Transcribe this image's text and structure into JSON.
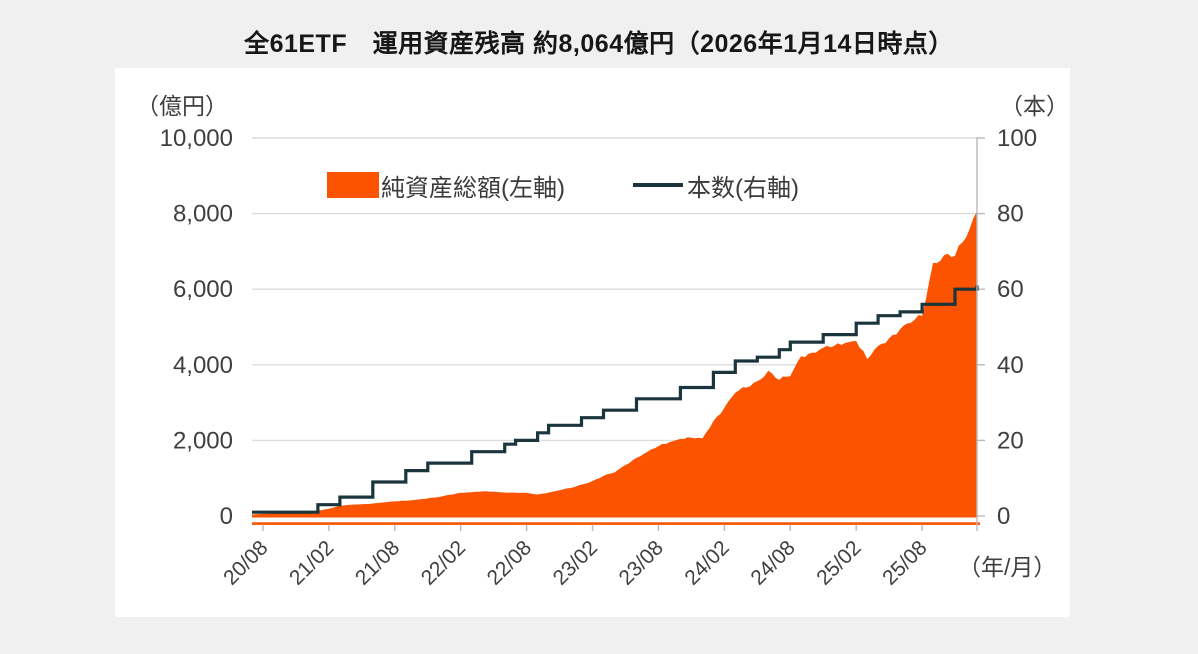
{
  "page": {
    "background": "#f0f0f0",
    "panel_background": "#ffffff"
  },
  "title": "全61ETF　運用資産残高 約8,064億円（2026年1月14日時点）",
  "legend": {
    "area_label": "純資産総額(左軸)",
    "line_label": "本数(右軸)"
  },
  "colors": {
    "area": "#fb5300",
    "line": "#1b353c",
    "grid": "#dcdcdc",
    "axis_gray": "#b9b9b9",
    "tick_text": "#3f3f3f"
  },
  "chart_data": {
    "type": "area",
    "subtype": "area with step-line combo, dual axis",
    "title": "全61ETF　運用資産残高 約8,064億円（2026年1月14日時点）",
    "x_start": "2020/07",
    "x_end": "2026/01",
    "x_unit_label": "（年/月）",
    "x_tick_labels": [
      "20/08",
      "21/02",
      "21/08",
      "22/02",
      "22/08",
      "23/02",
      "23/08",
      "24/02",
      "24/08",
      "25/02",
      "25/08"
    ],
    "x_tick_month_index": [
      1,
      7,
      13,
      19,
      25,
      31,
      37,
      43,
      49,
      55,
      61
    ],
    "left_axis": {
      "unit": "（億円）",
      "min": 0,
      "max": 10000,
      "ticks": [
        0,
        2000,
        4000,
        6000,
        8000,
        10000
      ]
    },
    "right_axis": {
      "unit": "（本）",
      "min": 0,
      "max": 100,
      "ticks": [
        0,
        20,
        40,
        60,
        80,
        100
      ]
    },
    "grid": true,
    "legend_position": "top-center-inside",
    "series": [
      {
        "name": "純資産総額(左軸)",
        "axis": "left",
        "type": "area",
        "color": "#fb5300",
        "values": [
          40,
          60,
          70,
          80,
          90,
          110,
          140,
          190,
          270,
          300,
          310,
          330,
          360,
          385,
          405,
          435,
          465,
          500,
          560,
          615,
          630,
          650,
          640,
          620,
          615,
          610,
          570,
          620,
          680,
          740,
          830,
          925,
          1060,
          1150,
          1350,
          1540,
          1700,
          1850,
          1950,
          2040,
          2070,
          2050,
          2510,
          2860,
          3260,
          3400,
          3570,
          3840,
          3600,
          3700,
          4230,
          4320,
          4450,
          4500,
          4580,
          4630,
          4150,
          4500,
          4700,
          4940,
          5110,
          5300,
          6700,
          6900,
          6880,
          7360,
          8064
        ]
      },
      {
        "name": "本数(右軸)",
        "axis": "right",
        "type": "step-line",
        "color": "#1b353c",
        "values": [
          1,
          1,
          1,
          1,
          1,
          1,
          3,
          3,
          5,
          5,
          5,
          9,
          9,
          9,
          12,
          12,
          14,
          14,
          14,
          14,
          17,
          17,
          17,
          19,
          20,
          20,
          22,
          24,
          24,
          24,
          26,
          26,
          28,
          28,
          28,
          31,
          31,
          31,
          31,
          34,
          34,
          34,
          38,
          38,
          41,
          41,
          42,
          42,
          44,
          46,
          46,
          46,
          48,
          48,
          48,
          51,
          51,
          53,
          53,
          54,
          54,
          56,
          56,
          56,
          60,
          60,
          61
        ]
      }
    ]
  }
}
